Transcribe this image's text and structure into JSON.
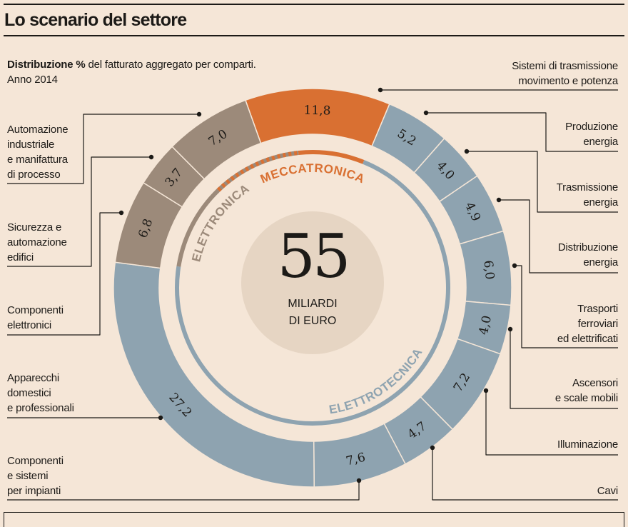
{
  "title": "Lo scenario del settore",
  "subtitle": {
    "bold": "Distribuzione %",
    "rest": " del fatturato aggregato per comparti.",
    "line2": "Anno 2014"
  },
  "center": {
    "value": "55",
    "unit_line1": "MILIARDI",
    "unit_line2": "DI EURO"
  },
  "colors": {
    "meccatronica": "#d97032",
    "elettrotecnica": "#8ea3b0",
    "elettronica": "#9c8a7a",
    "background": "#f5e6d7",
    "center_disc": "#e6d5c3"
  },
  "chart_data": {
    "type": "pie",
    "subtype": "donut",
    "title": "Lo scenario del settore",
    "total": "55 miliardi di euro",
    "unit": "%",
    "groups": [
      {
        "name": "MECCATRONICA",
        "color": "#d97032"
      },
      {
        "name": "ELETTROTECNICA",
        "color": "#8ea3b0"
      },
      {
        "name": "ELETTRONICA",
        "color": "#9c8a7a"
      }
    ],
    "slices": [
      {
        "label": "Sistemi di trasmissione movimento e potenza",
        "value": 11.8,
        "display": "11,8",
        "group": "MECCATRONICA"
      },
      {
        "label": "Produzione energia",
        "value": 5.2,
        "display": "5,2",
        "group": "ELETTROTECNICA"
      },
      {
        "label": "Trasmissione energia",
        "value": 4.0,
        "display": "4,0",
        "group": "ELETTROTECNICA"
      },
      {
        "label": "Distribuzione energia",
        "value": 4.9,
        "display": "4,9",
        "group": "ELETTROTECNICA"
      },
      {
        "label": "Trasporti ferroviari ed elettrificati",
        "value": 6.0,
        "display": "6,0",
        "group": "ELETTROTECNICA"
      },
      {
        "label": "Ascensori e scale mobili",
        "value": 4.0,
        "display": "4,0",
        "group": "ELETTROTECNICA"
      },
      {
        "label": "Illuminazione",
        "value": 7.2,
        "display": "7,2",
        "group": "ELETTROTECNICA"
      },
      {
        "label": "Cavi",
        "value": 4.7,
        "display": "4,7",
        "group": "ELETTROTECNICA"
      },
      {
        "label": "Componenti e sistemi per impianti",
        "value": 7.6,
        "display": "7,6",
        "group": "ELETTROTECNICA"
      },
      {
        "label": "Apparecchi domestici e professionali",
        "value": 27.2,
        "display": "27,2",
        "group": "ELETTROTECNICA"
      },
      {
        "label": "Componenti elettronici",
        "value": 6.8,
        "display": "6,8",
        "group": "ELETTRONICA"
      },
      {
        "label": "Sicurezza e automazione edifici",
        "value": 3.7,
        "display": "3,7",
        "group": "ELETTRONICA"
      },
      {
        "label": "Automazione industriale e manifattura di processo",
        "value": 7.0,
        "display": "7,0",
        "group": "ELETTRONICA"
      }
    ],
    "label_lines": [
      [
        "Sistemi di trasmissione",
        "movimento e potenza"
      ],
      [
        "Produzione",
        "energia"
      ],
      [
        "Trasmissione",
        "energia"
      ],
      [
        "Distribuzione",
        "energia"
      ],
      [
        "Trasporti",
        "ferroviari",
        "ed elettrificati"
      ],
      [
        "Ascensori",
        "e scale mobili"
      ],
      [
        "Illuminazione"
      ],
      [
        "Cavi"
      ],
      [
        "Componenti",
        "e sistemi",
        "per impianti"
      ],
      [
        "Apparecchi",
        "domestici",
        "e professionali"
      ],
      [
        "Componenti",
        "elettronici"
      ],
      [
        "Sicurezza e",
        "automazione",
        "edifici"
      ],
      [
        "Automazione",
        "industriale",
        "e manifattura",
        "di processo"
      ]
    ]
  }
}
